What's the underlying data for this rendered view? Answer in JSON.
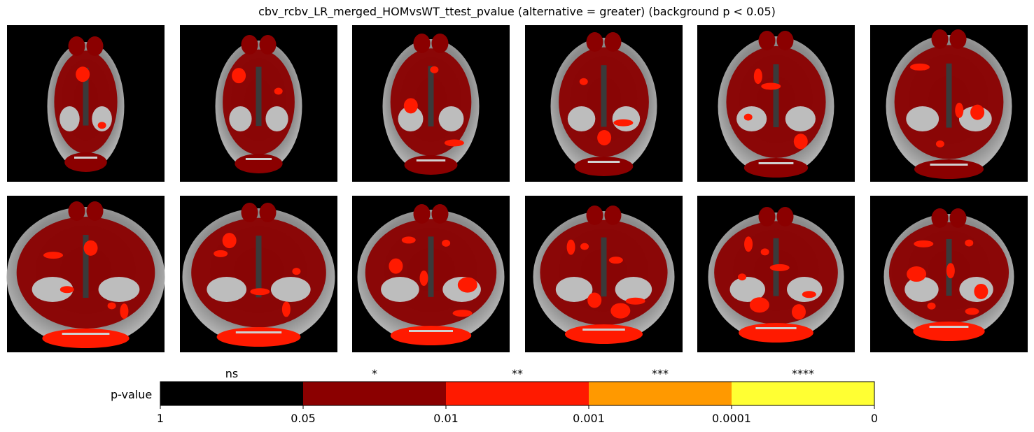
{
  "title": "cbv_rcbv_LR_merged_HOMvsWT_ttest_pvalue (alternative = greater) (background p < 0.05)",
  "chart_data": {
    "type": "heatmap",
    "title": "cbv_rcbv_LR_merged_HOMvsWT_ttest_pvalue (alternative = greater) (background p < 0.05)",
    "panel_count": 12,
    "grid": {
      "rows": 2,
      "cols": 6
    },
    "colorbar": {
      "label": "p-value",
      "boundaries": [
        "1",
        "0.05",
        "0.01",
        "0.001",
        "0.0001",
        "0"
      ],
      "bins": [
        {
          "symbol": "ns",
          "color": "#000000"
        },
        {
          "symbol": "*",
          "color": "#8b0000"
        },
        {
          "symbol": "**",
          "color": "#ff1a00"
        },
        {
          "symbol": "***",
          "color": "#ff9900"
        },
        {
          "symbol": "****",
          "color": "#ffff33"
        }
      ]
    }
  }
}
